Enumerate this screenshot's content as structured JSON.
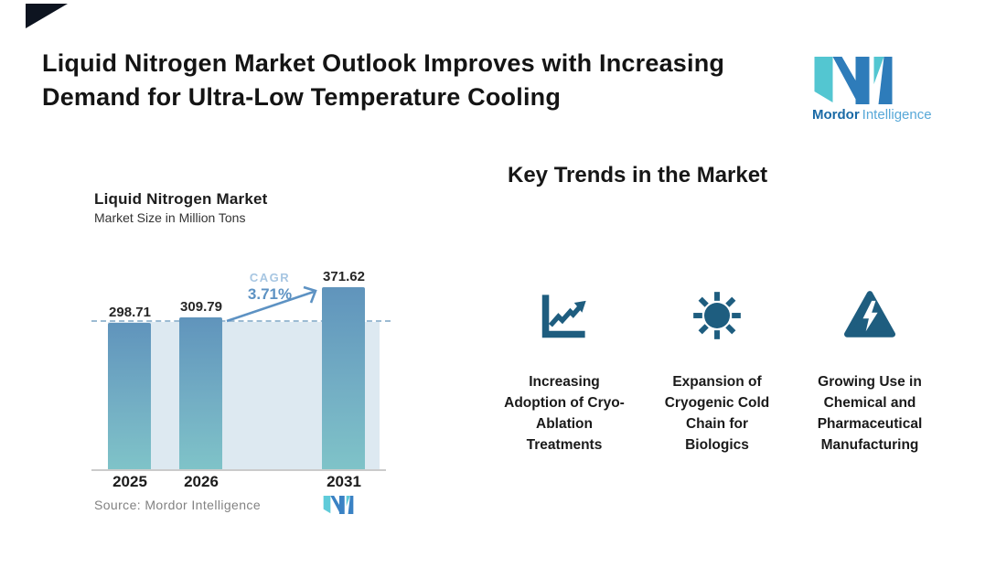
{
  "page": {
    "background": "#ffffff",
    "corner_triangle_color": "#0d1420"
  },
  "header": {
    "title_line1": "Liquid Nitrogen Market Outlook Improves with Increasing",
    "title_line2": "Demand for Ultra-Low Temperature Cooling"
  },
  "brand": {
    "name_bold": "Mordor",
    "name_light": "Intelligence",
    "logo_blue": "#2e7cba",
    "logo_teal": "#53c6d1"
  },
  "chart_data": {
    "type": "bar",
    "title": "Liquid Nitrogen Market",
    "subtitle": "Market Size in Million Tons",
    "ylabel": "Market Size in Million Tons",
    "categories": [
      "2025",
      "2026",
      "2031"
    ],
    "values": [
      298.71,
      309.79,
      371.62
    ],
    "value_labels": [
      "298.71",
      "309.79",
      "371.62"
    ],
    "cagr_label": "CAGR",
    "cagr_value": "3.71%",
    "reference_line_value": 298.71,
    "ylim": [
      0,
      400
    ],
    "grid": false,
    "bar_color_top": "#6094bc",
    "bar_color_bottom": "#7fc3c8",
    "band_color": "#dde9f1",
    "dash_color": "#9cbbd3",
    "arrow_color": "#5d92c3",
    "source": "Source:  Mordor Intelligence"
  },
  "key_trends": {
    "title": "Key Trends in the Market",
    "icon_color": "#1e5d7f",
    "items": [
      {
        "icon": "line-chart-icon",
        "label": "Increasing Adoption of Cryo-Ablation Treatments"
      },
      {
        "icon": "sun-icon",
        "label": "Expansion of Cryogenic Cold Chain for Biologics"
      },
      {
        "icon": "warning-lightning-icon",
        "label": "Growing Use in Chemical and Pharmaceutical Manufacturing"
      }
    ]
  }
}
